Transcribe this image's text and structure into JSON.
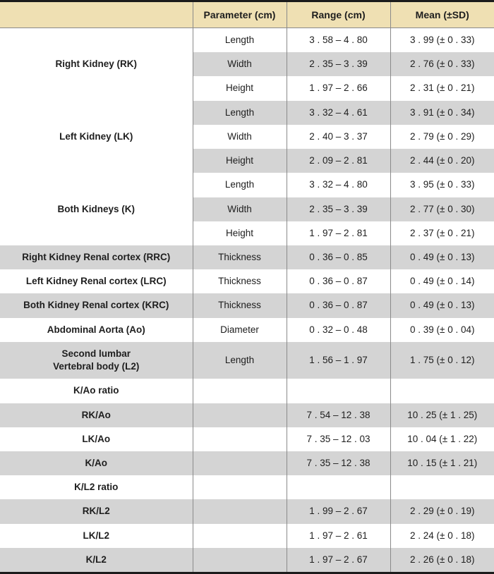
{
  "headers": [
    "",
    "Parameter (cm)",
    "Range (cm)",
    "Mean (±SD)"
  ],
  "groups": {
    "rk": "Right Kidney (RK)",
    "lk": "Left Kidney (LK)",
    "bk": "Both Kidneys (K)",
    "rrc": "Right Kidney Renal cortex (RRC)",
    "lrc": "Left Kidney Renal cortex (LRC)",
    "krc": "Both Kidney Renal cortex (KRC)",
    "ao": "Abdominal Aorta (Ao)",
    "l2a": "Second lumbar",
    "l2b": "Vertebral body (L2)",
    "kao_ratio": "K/Ao ratio",
    "rk_ao": "RK/Ao",
    "lk_ao": "LK/Ao",
    "k_ao": "K/Ao",
    "kl2_ratio": "K/L2 ratio",
    "rk_l2": "RK/L2",
    "lk_l2": "LK/L2",
    "k_l2": "K/L2"
  },
  "rows": {
    "rk_len": {
      "param": "Length",
      "range": "3 . 58   –   4 . 80",
      "mean": "3 . 99 (± 0 . 33)"
    },
    "rk_wid": {
      "param": "Width",
      "range": "2 . 35   –   3 . 39",
      "mean": "2 . 76 (± 0 . 33)"
    },
    "rk_hei": {
      "param": "Height",
      "range": "1 . 97   –   2 . 66",
      "mean": "2 . 31 (± 0 . 21)"
    },
    "lk_len": {
      "param": "Length",
      "range": "3 . 32   –   4 . 61",
      "mean": "3 . 91 (± 0 . 34)"
    },
    "lk_wid": {
      "param": "Width",
      "range": "2 . 40   –   3 . 37",
      "mean": "2 . 79 (± 0 . 29)"
    },
    "lk_hei": {
      "param": "Height",
      "range": "2 . 09   –   2 . 81",
      "mean": "2 . 44 (± 0 . 20)"
    },
    "bk_len": {
      "param": "Length",
      "range": "3 . 32   –   4 . 80",
      "mean": "3 . 95 (± 0 . 33)"
    },
    "bk_wid": {
      "param": "Width",
      "range": "2 . 35   –   3 . 39",
      "mean": "2 . 77 (± 0 . 30)"
    },
    "bk_hei": {
      "param": "Height",
      "range": "1 . 97   –   2 . 81",
      "mean": "2 . 37 (± 0 . 21)"
    },
    "rrc": {
      "param": "Thickness",
      "range": "0 . 36   –   0 . 85",
      "mean": "0 . 49 (± 0 . 13)"
    },
    "lrc": {
      "param": "Thickness",
      "range": "0 . 36   –   0 . 87",
      "mean": "0 . 49 (± 0 . 14)"
    },
    "krc": {
      "param": "Thickness",
      "range": "0 . 36   –   0 . 87",
      "mean": "0 . 49 (± 0 . 13)"
    },
    "ao": {
      "param": "Diameter",
      "range": "0 . 32   –   0 . 48",
      "mean": "0 . 39 (± 0 . 04)"
    },
    "l2": {
      "param": "Length",
      "range": "1 . 56   –   1 . 97",
      "mean": "1 . 75 (± 0 . 12)"
    },
    "rk_ao": {
      "param": "",
      "range": "7 . 54   –   12 . 38",
      "mean": "10 . 25 (± 1 . 25)"
    },
    "lk_ao": {
      "param": "",
      "range": "7 . 35   –   12 . 03",
      "mean": "10 . 04 (± 1 . 22)"
    },
    "k_ao": {
      "param": "",
      "range": "7 . 35   –   12 . 38",
      "mean": "10 . 15 (± 1 . 21)"
    },
    "rk_l2": {
      "param": "",
      "range": "1 . 99   –   2 . 67",
      "mean": "2 . 29 (± 0 . 19)"
    },
    "lk_l2": {
      "param": "",
      "range": "1 . 97   –   2 . 61",
      "mean": "2 . 24 (± 0 . 18)"
    },
    "k_l2": {
      "param": "",
      "range": "1 . 97   –   2 . 67",
      "mean": "2 . 26 (± 0 . 18)"
    }
  },
  "colors": {
    "header_bg": "#efe0b3",
    "row_gray": "#d4d4d4",
    "row_white": "#ffffff",
    "border": "#8a8a8a",
    "frame": "#1b1b1b",
    "text": "#1e1e1e"
  }
}
